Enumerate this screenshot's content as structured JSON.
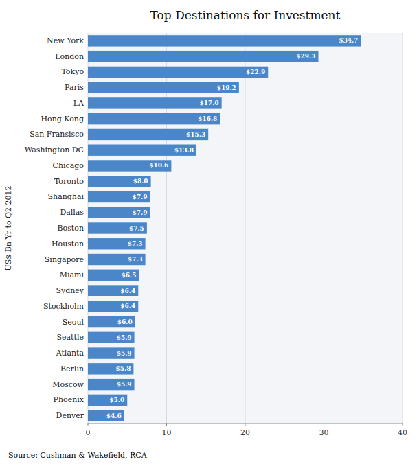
{
  "chart_data": {
    "type": "bar",
    "orientation": "horizontal",
    "title": "Top Destinations for Investment",
    "ylabel": "US$ Bn Yr to Q2 2012",
    "source": "Source: Cushman & Wakefield, RCA",
    "color": "#4a86c8",
    "categories": [
      "New York",
      "London",
      "Tokyo",
      "Paris",
      "LA",
      "Hong Kong",
      "San Fransisco",
      "Washington DC",
      "Chicago",
      "Toronto",
      "Shanghai",
      "Dallas",
      "Boston",
      "Houston",
      "Singapore",
      "Miami",
      "Sydney",
      "Stockholm",
      "Seoul",
      "Seattle",
      "Atlanta",
      "Berlin",
      "Moscow",
      "Phoenix",
      "Denver"
    ],
    "values": [
      34.7,
      29.3,
      22.9,
      19.2,
      17.0,
      16.8,
      15.3,
      13.8,
      10.6,
      8.0,
      7.9,
      7.9,
      7.5,
      7.3,
      7.3,
      6.5,
      6.4,
      6.4,
      6.0,
      5.9,
      5.9,
      5.8,
      5.9,
      5.0,
      4.6
    ],
    "value_labels": [
      "$34.7",
      "$29.3",
      "$22.9",
      "$19.2",
      "$17.0",
      "$16.8",
      "$15.3",
      "$13.8",
      "$10.6",
      "$8.0",
      "$7.9",
      "$7.9",
      "$7.5",
      "$7.3",
      "$7.3",
      "$6.5",
      "$6.4",
      "$6.4",
      "$6.0",
      "$5.9",
      "$5.9",
      "$5.8",
      "$5.9",
      "$5.0",
      "$4.6"
    ],
    "data_labels": true,
    "xlim": [
      0,
      40
    ],
    "xticks": [
      0,
      10,
      20,
      30,
      40
    ],
    "grid": true
  }
}
